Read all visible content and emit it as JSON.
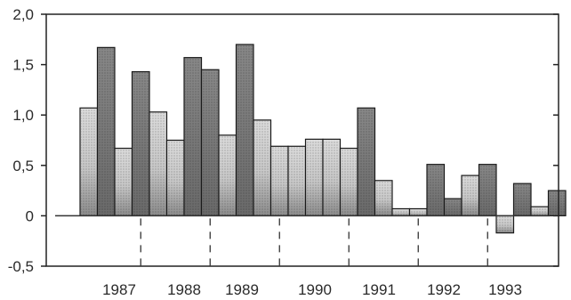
{
  "chart_data": {
    "type": "bar",
    "title": "",
    "xlabel": "",
    "ylabel": "",
    "ylim": [
      -0.5,
      2.0
    ],
    "grid": false,
    "legend": "none",
    "y_ticks": [
      "2,0",
      "1,5",
      "1,0",
      "0,5",
      "0",
      "-0,5"
    ],
    "y_tick_values": [
      2.0,
      1.5,
      1.0,
      0.5,
      0.0,
      -0.5
    ],
    "year_labels": [
      "1987",
      "1988",
      "1989",
      "1990",
      "1991",
      "1992",
      "1993"
    ],
    "values": [
      1.07,
      1.67,
      0.67,
      1.43,
      1.03,
      0.75,
      1.57,
      1.45,
      0.8,
      1.7,
      0.95,
      0.69,
      0.69,
      0.76,
      0.76,
      0.67,
      1.07,
      0.35,
      0.07,
      0.07,
      0.51,
      0.17,
      0.4,
      0.51,
      -0.17,
      0.32,
      0.09,
      0.25
    ],
    "bar_shading": [
      "light",
      "dark",
      "light",
      "dark",
      "light",
      "light",
      "dark",
      "dark",
      "light",
      "dark",
      "light",
      "light",
      "light",
      "light",
      "light",
      "light",
      "dark",
      "light",
      "light",
      "light",
      "dark",
      "dark",
      "light",
      "dark",
      "light",
      "dark",
      "light",
      "dark"
    ]
  },
  "colors": {
    "light_bar": "#d4d4d4",
    "dark_bar": "#7a7a7a",
    "low_gradient": "#9a9a9a",
    "frame": "#222222"
  }
}
